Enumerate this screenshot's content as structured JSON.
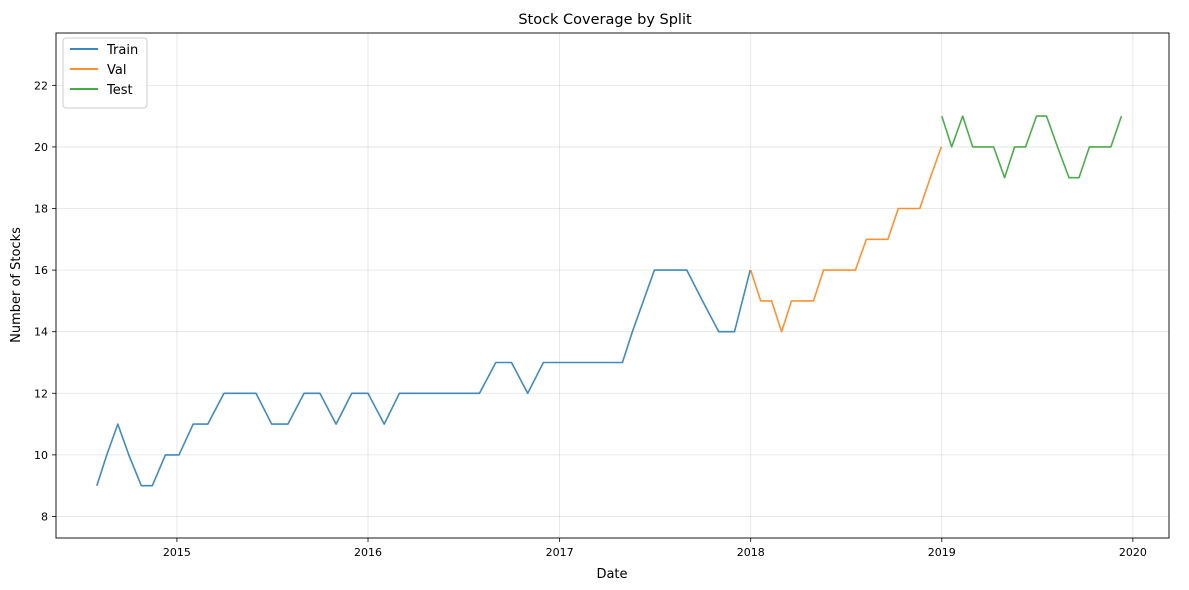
{
  "chart_data": {
    "type": "line",
    "title": "Stock Coverage by Split",
    "xlabel": "Date",
    "ylabel": "Number of Stocks",
    "xlim": [
      "2014-05-15",
      "2020-03-10"
    ],
    "ylim": [
      7.3,
      23.7
    ],
    "x_ticks": [
      "2015",
      "2016",
      "2017",
      "2018",
      "2019",
      "2020"
    ],
    "y_ticks": [
      8,
      10,
      12,
      14,
      16,
      18,
      20,
      22
    ],
    "grid": true,
    "legend_position": "top-left",
    "series": [
      {
        "name": "Train",
        "color": "#1f77b4",
        "x": [
          "2014-08-01",
          "2014-08-20",
          "2014-09-10",
          "2014-10-01",
          "2014-10-25",
          "2014-11-15",
          "2014-12-10",
          "2015-01-05",
          "2015-02-01",
          "2015-03-01",
          "2015-04-01",
          "2015-05-01",
          "2015-06-01",
          "2015-07-01",
          "2015-08-01",
          "2015-09-01",
          "2015-10-01",
          "2015-11-01",
          "2015-12-01",
          "2016-01-01",
          "2016-02-01",
          "2016-03-01",
          "2016-04-01",
          "2016-05-01",
          "2016-06-01",
          "2016-07-01",
          "2016-08-01",
          "2016-09-01",
          "2016-10-01",
          "2016-11-01",
          "2016-12-01",
          "2017-01-01",
          "2017-02-01",
          "2017-03-01",
          "2017-04-01",
          "2017-05-01",
          "2017-05-20",
          "2017-06-10",
          "2017-07-01",
          "2017-08-01",
          "2017-09-01",
          "2017-10-01",
          "2017-11-01",
          "2017-12-01",
          "2017-12-31"
        ],
        "y": [
          9,
          10,
          11,
          10,
          9,
          9,
          10,
          10,
          11,
          11,
          12,
          12,
          12,
          11,
          11,
          12,
          12,
          11,
          12,
          12,
          11,
          12,
          12,
          12,
          12,
          12,
          12,
          13,
          13,
          12,
          13,
          13,
          13,
          13,
          13,
          13,
          14,
          15,
          16,
          16,
          16,
          15,
          14,
          14,
          16
        ]
      },
      {
        "name": "Val",
        "color": "#ff7f0e",
        "x": [
          "2018-01-01",
          "2018-01-20",
          "2018-02-10",
          "2018-03-01",
          "2018-03-20",
          "2018-04-10",
          "2018-05-01",
          "2018-05-20",
          "2018-06-10",
          "2018-07-01",
          "2018-07-20",
          "2018-08-10",
          "2018-09-01",
          "2018-09-20",
          "2018-10-10",
          "2018-11-01",
          "2018-11-20",
          "2018-12-10",
          "2018-12-31"
        ],
        "y": [
          16,
          15,
          15,
          14,
          15,
          15,
          15,
          16,
          16,
          16,
          16,
          17,
          17,
          17,
          18,
          18,
          18,
          19,
          20
        ]
      },
      {
        "name": "Test",
        "color": "#2ca02c",
        "x": [
          "2019-01-01",
          "2019-01-20",
          "2019-02-10",
          "2019-03-01",
          "2019-03-20",
          "2019-04-10",
          "2019-05-01",
          "2019-05-20",
          "2019-06-10",
          "2019-07-01",
          "2019-07-20",
          "2019-08-10",
          "2019-09-01",
          "2019-09-20",
          "2019-10-10",
          "2019-11-01",
          "2019-11-20",
          "2019-12-10"
        ],
        "y": [
          21,
          20,
          21,
          20,
          20,
          20,
          19,
          20,
          20,
          21,
          21,
          20,
          19,
          19,
          20,
          20,
          20,
          21
        ]
      }
    ]
  }
}
